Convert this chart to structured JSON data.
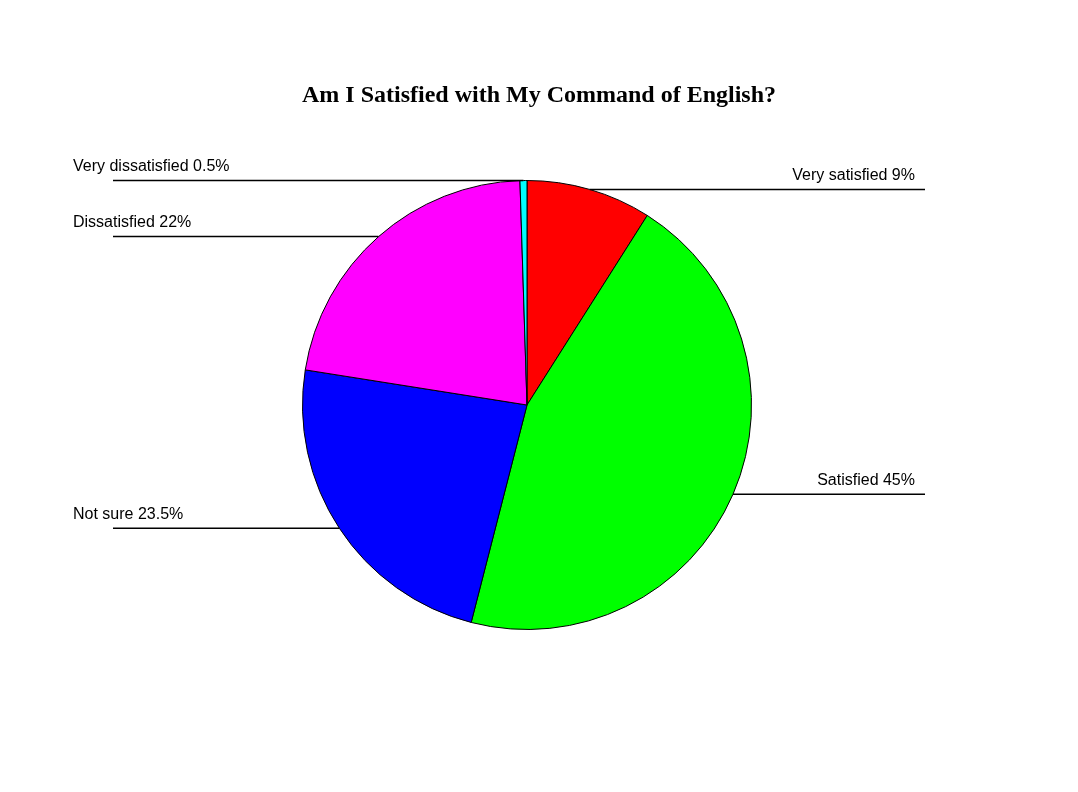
{
  "chart_data": {
    "type": "pie",
    "title": "Am I Satisfied with My Command of English?",
    "categories": [
      "Very satisfied",
      "Satisfied",
      "Not sure",
      "Dissatisfied",
      "Very dissatisfied"
    ],
    "values": [
      9,
      45,
      23.5,
      22,
      0.5
    ],
    "value_labels": [
      "9%",
      "45%",
      "23.5%",
      "22%",
      "0.5%"
    ],
    "colors": [
      "#ff0000",
      "#00ff00",
      "#0000ff",
      "#ff00ff",
      "#00ffff"
    ],
    "legend": false
  }
}
